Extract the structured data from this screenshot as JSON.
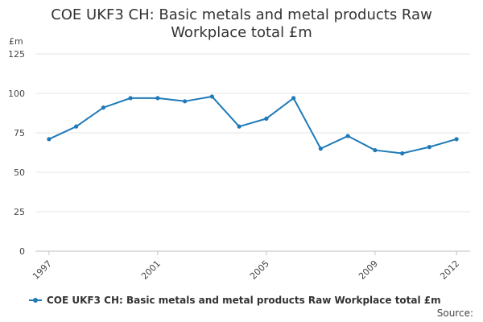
{
  "chart_data": {
    "type": "line",
    "title_lines": [
      "COE UKF3 CH: Basic metals and metal products Raw",
      "Workplace total £m"
    ],
    "unit_label": "£m",
    "xlabel": "",
    "ylabel": "",
    "ylim": [
      0,
      125
    ],
    "yticks": [
      0,
      25,
      50,
      75,
      100,
      125
    ],
    "xticks": [
      "1997",
      "2001",
      "2005",
      "2009",
      "2012"
    ],
    "x": [
      1997,
      1998,
      1999,
      2000,
      2001,
      2002,
      2003,
      2004,
      2005,
      2006,
      2007,
      2008,
      2009,
      2010,
      2011,
      2012
    ],
    "series": [
      {
        "name": "COE UKF3 CH: Basic metals and metal products Raw Workplace total £m",
        "color": "#1f7ab8",
        "values": [
          71,
          79,
          91,
          97,
          97,
          95,
          98,
          79,
          84,
          97,
          65,
          73,
          64,
          62,
          66,
          71
        ]
      }
    ],
    "grid": true,
    "legend_position": "bottom-left"
  },
  "source_label": "Source:"
}
